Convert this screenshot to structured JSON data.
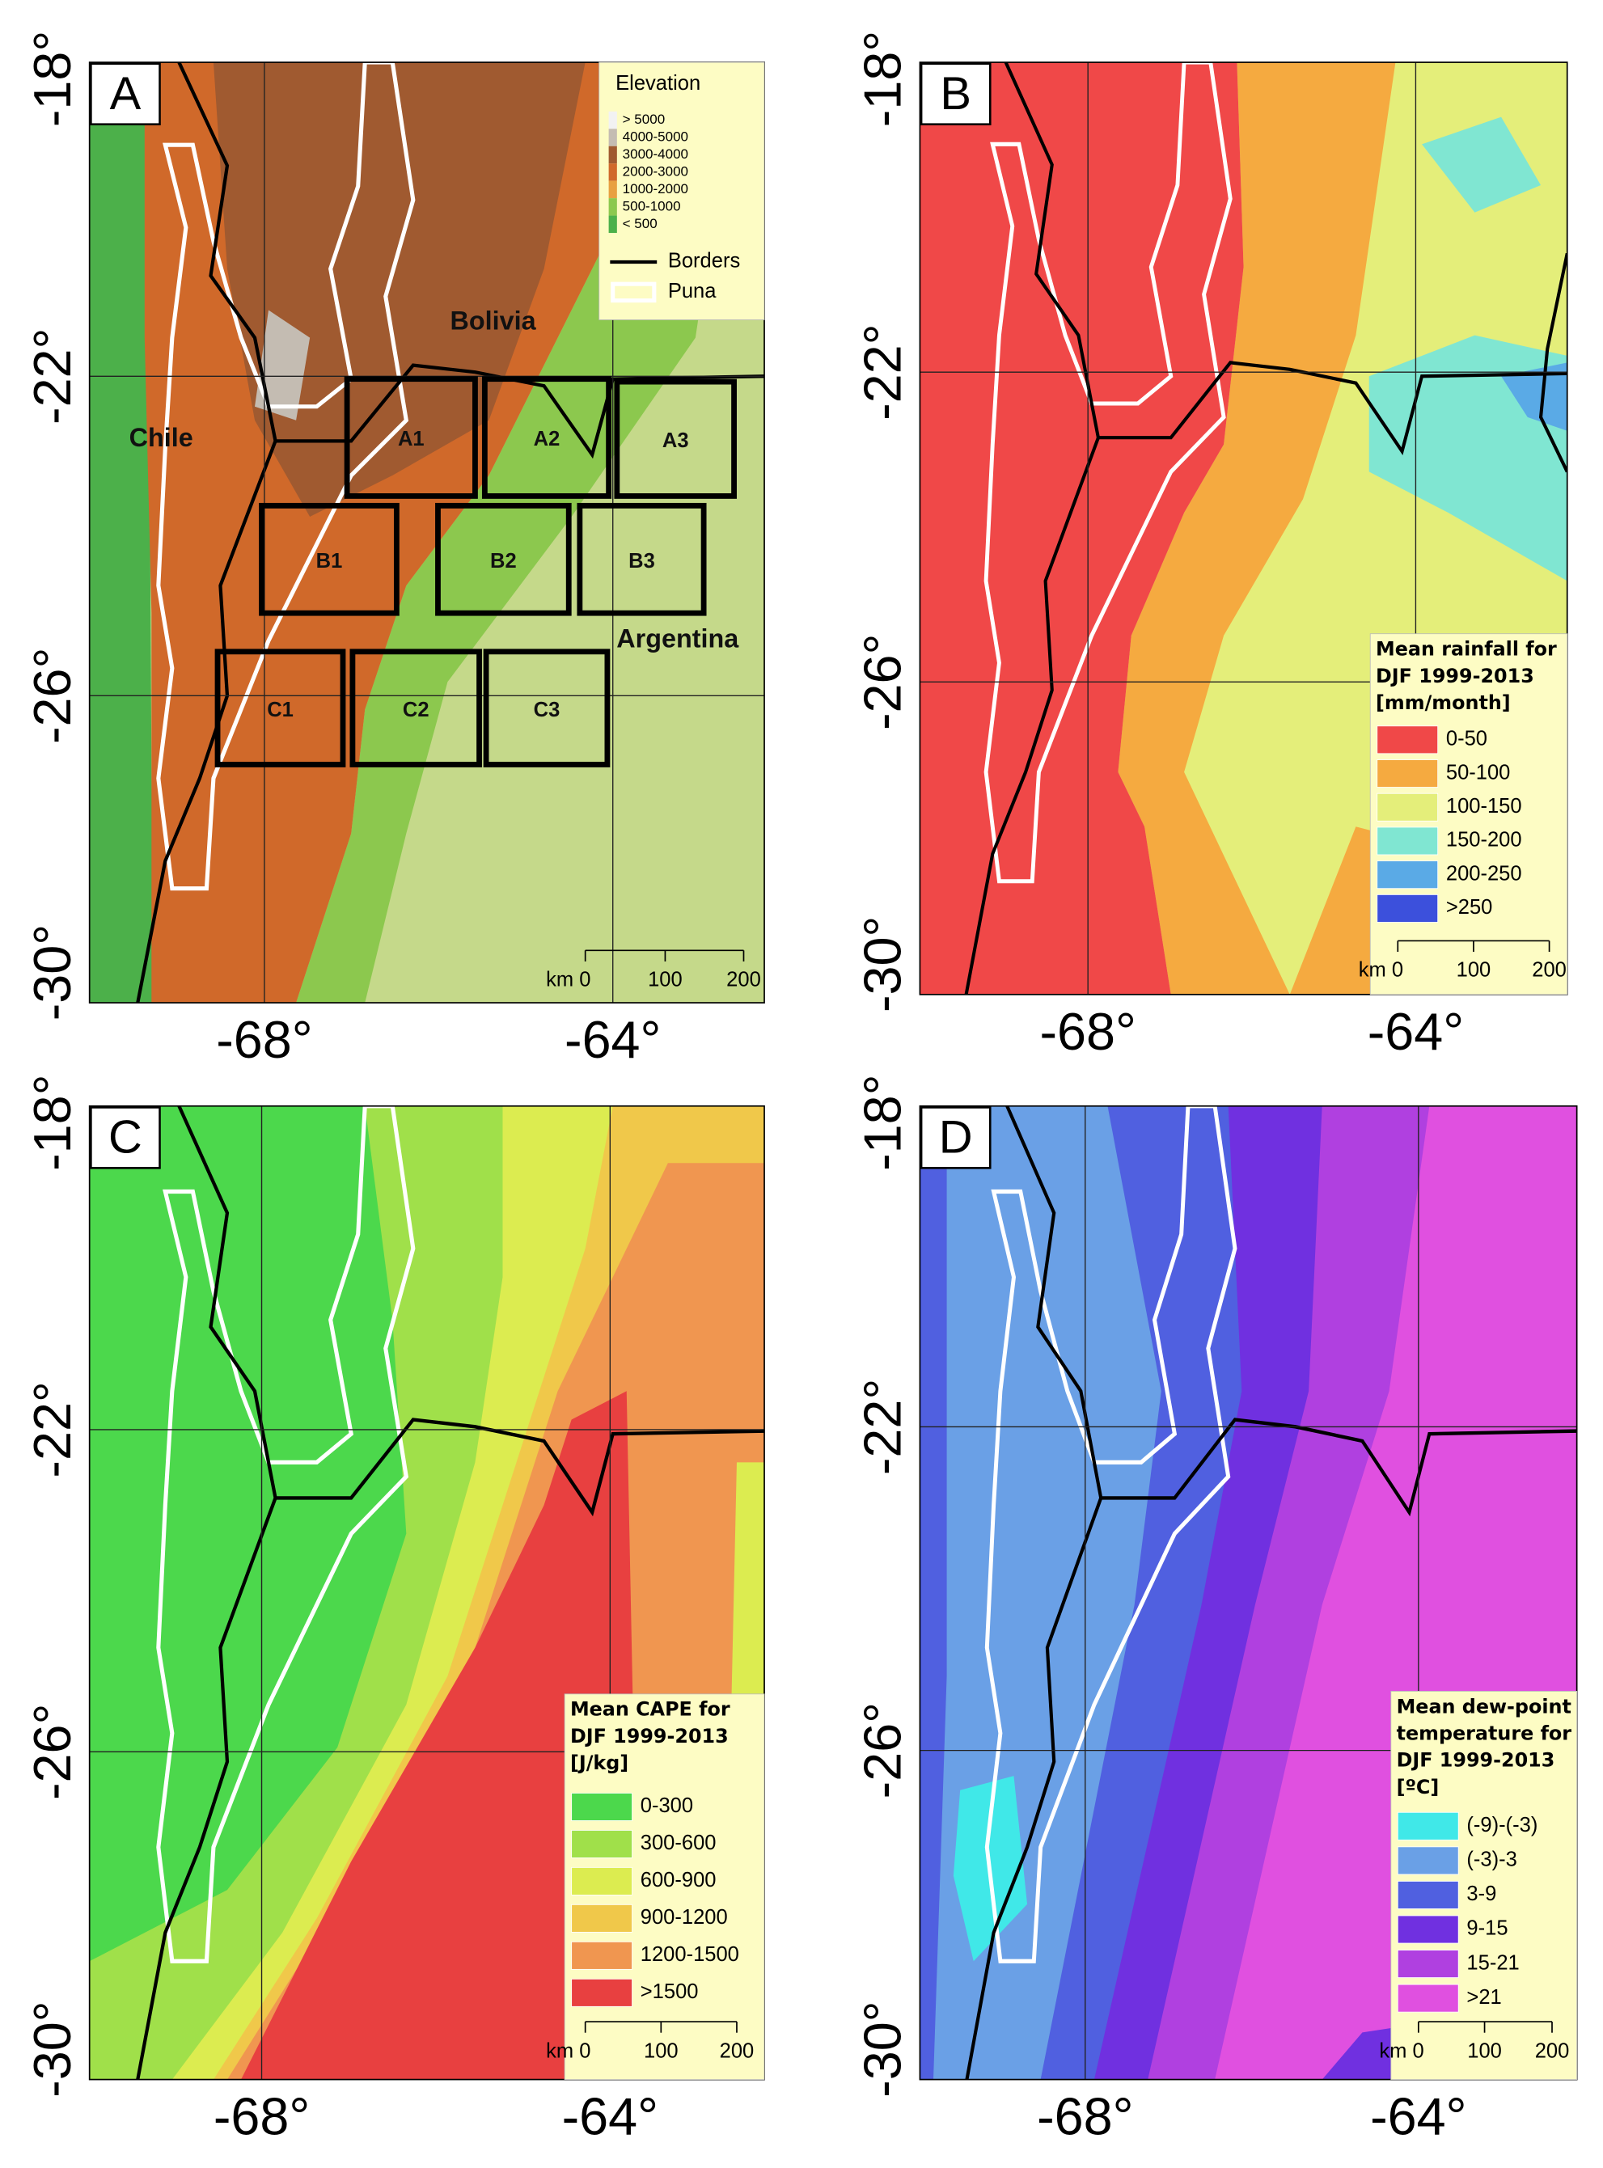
{
  "panels": [
    {
      "label": "A",
      "y_axis": [
        "-18°",
        "-22°",
        "-26°",
        "-30°"
      ],
      "x_axis": [
        "-68°",
        "-64°"
      ],
      "legend": {
        "title": [
          "Elevation"
        ],
        "items": [
          {
            "label": "> 5000",
            "color": "#f2f2f2"
          },
          {
            "label": "4000-5000",
            "color": "#c4bcb2"
          },
          {
            "label": "3000-4000",
            "color": "#a05a30"
          },
          {
            "label": "2000-3000",
            "color": "#d0692a"
          },
          {
            "label": "1000-2000",
            "color": "#e8a040"
          },
          {
            "label": "500-1000",
            "color": "#8cc84e"
          },
          {
            "label": "< 500",
            "color": "#4cb04a"
          }
        ]
      },
      "line_legend": [
        "Borders",
        "Puna"
      ],
      "countries": [
        "Bolivia",
        "Chile",
        "Argentina"
      ],
      "boxes": [
        "A1",
        "A2",
        "A3",
        "B1",
        "B2",
        "B3",
        "C1",
        "C2",
        "C3"
      ],
      "scale": [
        "km 0",
        "100",
        "200"
      ]
    },
    {
      "label": "B",
      "y_axis": [
        "-18°",
        "-22°",
        "-26°",
        "-30°"
      ],
      "x_axis": [
        "-68°",
        "-64°"
      ],
      "legend": {
        "title": [
          "Mean rainfall for",
          "DJF 1999-2013",
          "[mm/month]"
        ],
        "items": [
          {
            "label": "0-50",
            "color": "#f04848"
          },
          {
            "label": "50-100",
            "color": "#f5aa40"
          },
          {
            "label": "100-150",
            "color": "#e4ee7a"
          },
          {
            "label": "150-200",
            "color": "#80e6d2"
          },
          {
            "label": "200-250",
            "color": "#5aaae6"
          },
          {
            "label": ">250",
            "color": "#3c50dc"
          }
        ]
      },
      "scale": [
        "km 0",
        "100",
        "200"
      ]
    },
    {
      "label": "C",
      "y_axis": [
        "-18°",
        "-22°",
        "-26°",
        "-30°"
      ],
      "x_axis": [
        "-68°",
        "-64°"
      ],
      "legend": {
        "title": [
          "Mean CAPE for",
          "DJF 1999-2013",
          "[J/kg]"
        ],
        "items": [
          {
            "label": "0-300",
            "color": "#4cd84c"
          },
          {
            "label": "300-600",
            "color": "#a0e04a"
          },
          {
            "label": "600-900",
            "color": "#dcec50"
          },
          {
            "label": "900-1200",
            "color": "#f0c84a"
          },
          {
            "label": "1200-1500",
            "color": "#f09650"
          },
          {
            "label": ">1500",
            "color": "#e84040"
          }
        ]
      },
      "scale": [
        "km 0",
        "100",
        "200"
      ]
    },
    {
      "label": "D",
      "y_axis": [
        "-18°",
        "-22°",
        "-26°",
        "-30°"
      ],
      "x_axis": [
        "-68°",
        "-64°"
      ],
      "legend": {
        "title": [
          "Mean dew-point",
          "temperature for",
          "DJF 1999-2013",
          "[ºC]"
        ],
        "items": [
          {
            "label": "(-9)-(-3)",
            "color": "#40e8e8"
          },
          {
            "label": "(-3)-3",
            "color": "#6aa0e6"
          },
          {
            "label": "3-9",
            "color": "#5060e0"
          },
          {
            "label": "9-15",
            "color": "#7030e0"
          },
          {
            "label": "15-21",
            "color": "#b040e0"
          },
          {
            "label": ">21",
            "color": "#e050e0"
          }
        ]
      },
      "scale": [
        "km 0",
        "100",
        "200"
      ]
    }
  ]
}
